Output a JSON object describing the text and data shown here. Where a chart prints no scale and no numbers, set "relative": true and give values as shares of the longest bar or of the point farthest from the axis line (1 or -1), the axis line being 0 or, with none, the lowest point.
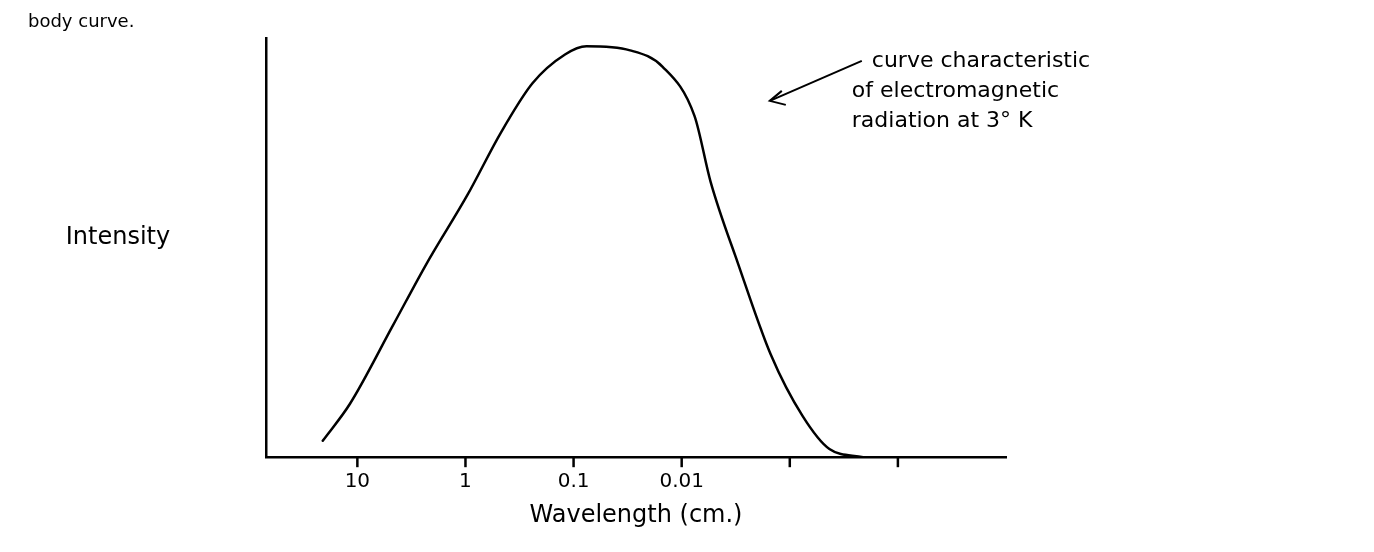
{
  "chart_data": {
    "type": "line",
    "relative": true,
    "ylabel": "Intensity",
    "xlabel": "Wavelength (cm.)",
    "log": "x",
    "xlim": [
      70,
      1e-05
    ],
    "xticks": [
      10,
      1,
      0.1,
      0.01,
      {
        "value": 0.001,
        "label": null
      },
      {
        "value": 0.0001,
        "label": null
      }
    ],
    "series": [
      {
        "color": "#000000",
        "x": [
          20.9,
          11.7,
          4.7,
          2.3,
          0.95,
          0.47,
          0.24,
          0.12,
          0.076,
          0.03,
          0.015,
          0.0076,
          0.0054,
          0.003,
          0.0015,
          0.00076,
          0.00043,
          0.00021
        ],
        "values": [
          0.04,
          0.13,
          0.32,
          0.47,
          0.64,
          0.79,
          0.91,
          0.98,
          1.0,
          0.99,
          0.95,
          0.83,
          0.67,
          0.47,
          0.25,
          0.1,
          0.02,
          0.0
        ]
      }
    ],
    "marker": "none",
    "grid": false,
    "legend": false,
    "annotations": [
      "body curve.",
      "curve characteristic of electromagnetic radiation at 3° K"
    ]
  }
}
